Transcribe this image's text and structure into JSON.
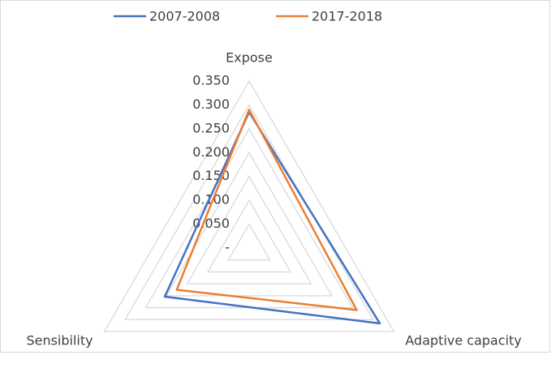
{
  "chart_data": {
    "type": "radar",
    "categories": [
      "Expose",
      "Adaptive capacity",
      "Sensibility"
    ],
    "series": [
      {
        "name": "2007-2008",
        "color": "#4472c4",
        "values": [
          0.285,
          0.316,
          0.204
        ]
      },
      {
        "name": "2017-2018",
        "color": "#ed7d31",
        "values": [
          0.29,
          0.26,
          0.175
        ]
      }
    ],
    "ylim": [
      0,
      0.35
    ],
    "yticks": [
      {
        "value": 0,
        "label": "-"
      },
      {
        "value": 0.05,
        "label": "0.050"
      },
      {
        "value": 0.1,
        "label": "0.100"
      },
      {
        "value": 0.15,
        "label": "0.150"
      },
      {
        "value": 0.2,
        "label": "0.200"
      },
      {
        "value": 0.25,
        "label": "0.250"
      },
      {
        "value": 0.3,
        "label": "0.300"
      },
      {
        "value": 0.35,
        "label": "0.350"
      }
    ],
    "grid": true,
    "legend": "top"
  }
}
